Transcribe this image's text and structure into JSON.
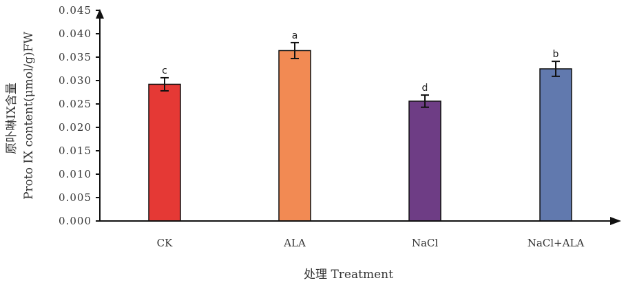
{
  "chart_data": {
    "type": "bar",
    "xlabel": "处理 Treatment",
    "ylabel_line1": "原卟啉IX含量",
    "ylabel_line2": "Proto IX content(μmol/g)FW",
    "categories": [
      "CK",
      "ALA",
      "NaCl",
      "NaCl+ALA"
    ],
    "values": [
      0.0292,
      0.0364,
      0.0256,
      0.0325
    ],
    "errors": [
      0.0014,
      0.0017,
      0.0013,
      0.0016
    ],
    "significance": [
      "c",
      "a",
      "d",
      "b"
    ],
    "colors": [
      "#e53935",
      "#f28a53",
      "#6e3d85",
      "#6179ae"
    ],
    "ylim": [
      0,
      0.045
    ],
    "yticks": [
      "0.000",
      "0.005",
      "0.010",
      "0.015",
      "0.020",
      "0.025",
      "0.030",
      "0.035",
      "0.040",
      "0.045"
    ],
    "grid": false,
    "legend": "none"
  }
}
